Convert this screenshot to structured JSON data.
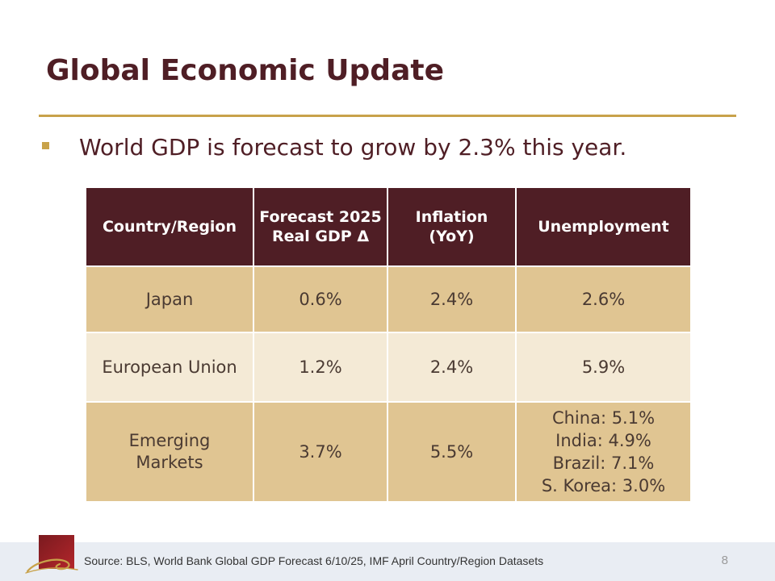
{
  "slide": {
    "title": "Global Economic Update",
    "bullet": "World GDP is forecast to grow by 2.3% this year."
  },
  "table": {
    "headers": [
      "Country/Region",
      "Forecast 2025 Real GDP Δ",
      "Inflation (YoY)",
      "Unemployment"
    ],
    "rows": [
      {
        "region": "Japan",
        "gdp": "0.6%",
        "inflation": "2.4%",
        "unemployment": "2.6%"
      },
      {
        "region": "European Union",
        "gdp": "1.2%",
        "inflation": "2.4%",
        "unemployment": "5.9%"
      },
      {
        "region": "Emerging Markets",
        "gdp": "3.7%",
        "inflation": "5.5%",
        "unemployment_lines": [
          "China: 5.1%",
          "India: 4.9%",
          "Brazil: 7.1%",
          "S. Korea: 3.0%"
        ]
      }
    ]
  },
  "footer": {
    "source": "Source: BLS, World Bank Global GDP Forecast 6/10/25, IMF April Country/Region Datasets",
    "page_number": "8"
  },
  "colors": {
    "title": "#4f1e25",
    "accent_gold": "#c8a24a",
    "header_bg": "#4f1e25",
    "row_dark": "#e0c592",
    "row_light": "#f4ead6",
    "footer_bg": "#e9edf3"
  },
  "icons": {
    "logo": "red-square-gold-swoosh-logo"
  }
}
